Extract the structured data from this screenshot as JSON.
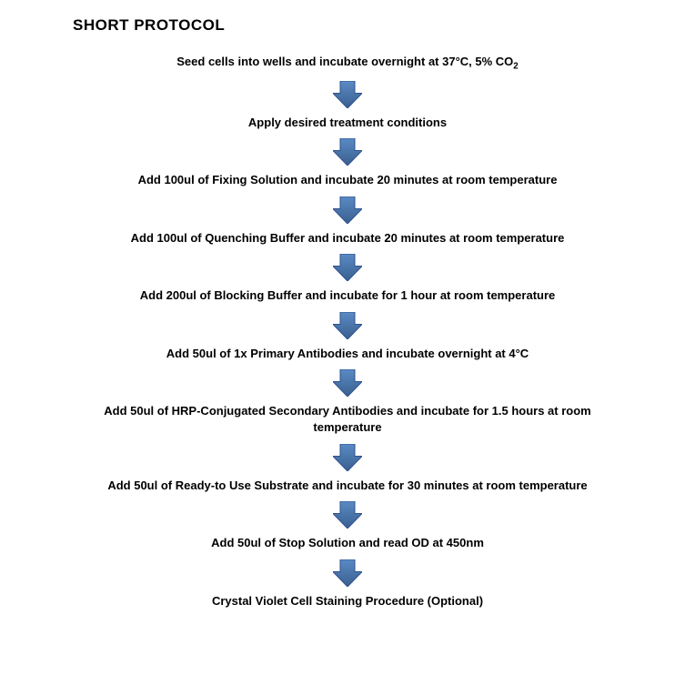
{
  "title": "SHORT PROTOCOL",
  "flowchart": {
    "type": "flowchart",
    "arrow_color": "#4472a8",
    "arrow_stroke": "#2f528f",
    "arrow_width": 32,
    "arrow_height": 30,
    "background_color": "#ffffff",
    "text_color": "#000000",
    "step_fontsize": 13,
    "step_fontweight": "bold",
    "title_fontsize": 17,
    "title_fontweight": "bold",
    "steps": [
      "Seed cells into wells and incubate overnight at 37°C, 5% CO₂",
      "Apply desired treatment conditions",
      "Add 100ul of Fixing Solution and incubate 20 minutes at room temperature",
      "Add 100ul of Quenching Buffer and incubate 20 minutes at room temperature",
      "Add 200ul of Blocking Buffer and incubate for 1 hour at room temperature",
      "Add 50ul of 1x Primary Antibodies and incubate overnight at 4°C",
      "Add 50ul of HRP-Conjugated Secondary Antibodies and incubate for 1.5 hours at room temperature",
      "Add 50ul of Ready-to Use Substrate and incubate for 30 minutes at room temperature",
      "Add 50ul of Stop Solution and read OD at 450nm",
      "Crystal Violet Cell Staining Procedure (Optional)"
    ]
  }
}
